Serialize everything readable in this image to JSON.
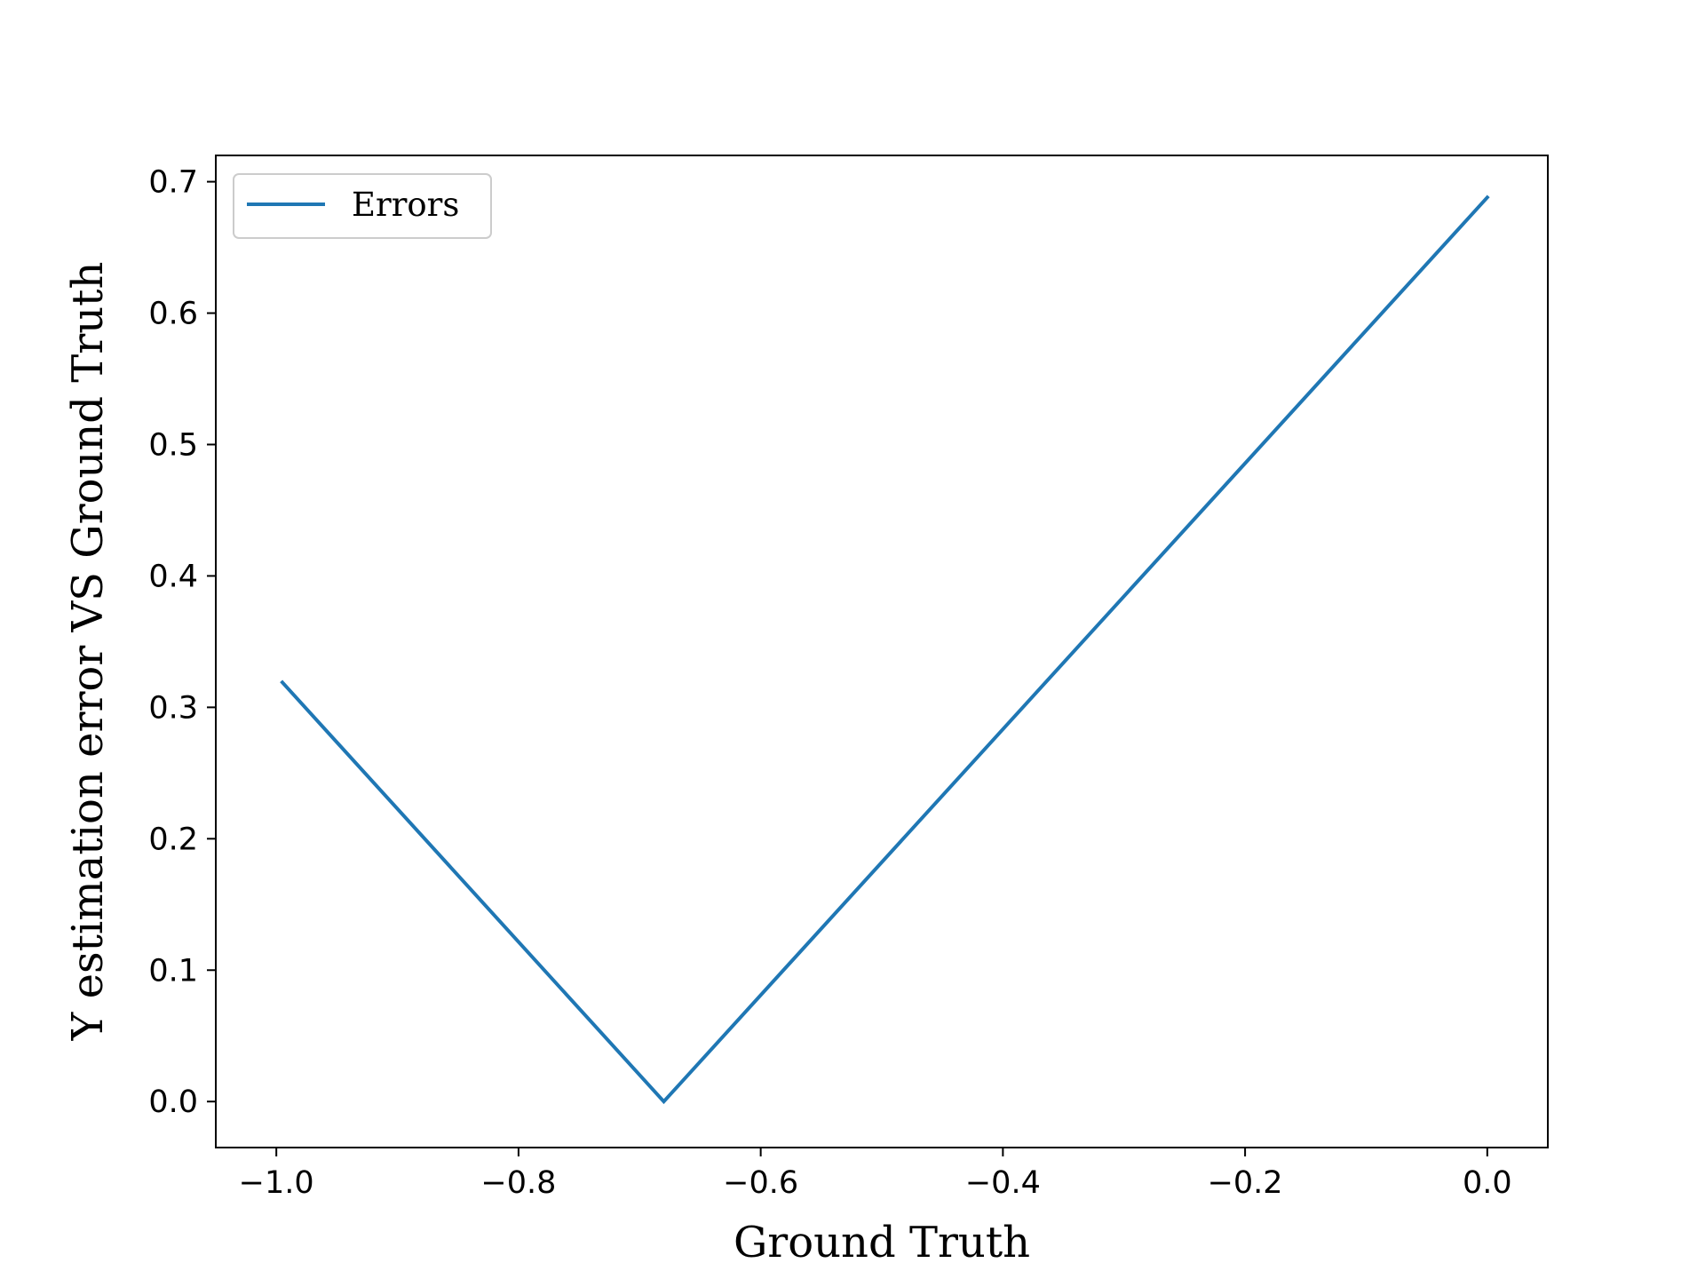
{
  "chart_data": {
    "type": "line",
    "title": "",
    "xlabel": "Ground Truth",
    "ylabel": "Y estimation error VS Ground Truth",
    "xlim": [
      -1.05,
      0.05
    ],
    "ylim": [
      -0.035,
      0.72
    ],
    "xticks": [
      -1.0,
      -0.8,
      -0.6,
      -0.4,
      -0.2,
      0.0
    ],
    "xtick_labels": [
      "−1.0",
      "−0.8",
      "−0.6",
      "−0.4",
      "−0.2",
      "0.0"
    ],
    "yticks": [
      0.0,
      0.1,
      0.2,
      0.3,
      0.4,
      0.5,
      0.6,
      0.7
    ],
    "ytick_labels": [
      "0.0",
      "0.1",
      "0.2",
      "0.3",
      "0.4",
      "0.5",
      "0.6",
      "0.7"
    ],
    "grid": false,
    "legend": {
      "position": "upper-left"
    },
    "series": [
      {
        "name": "Errors",
        "color": "#1f77b4",
        "x": [
          -0.995,
          -0.68,
          0.0
        ],
        "y": [
          0.319,
          0.0,
          0.688
        ]
      }
    ]
  }
}
